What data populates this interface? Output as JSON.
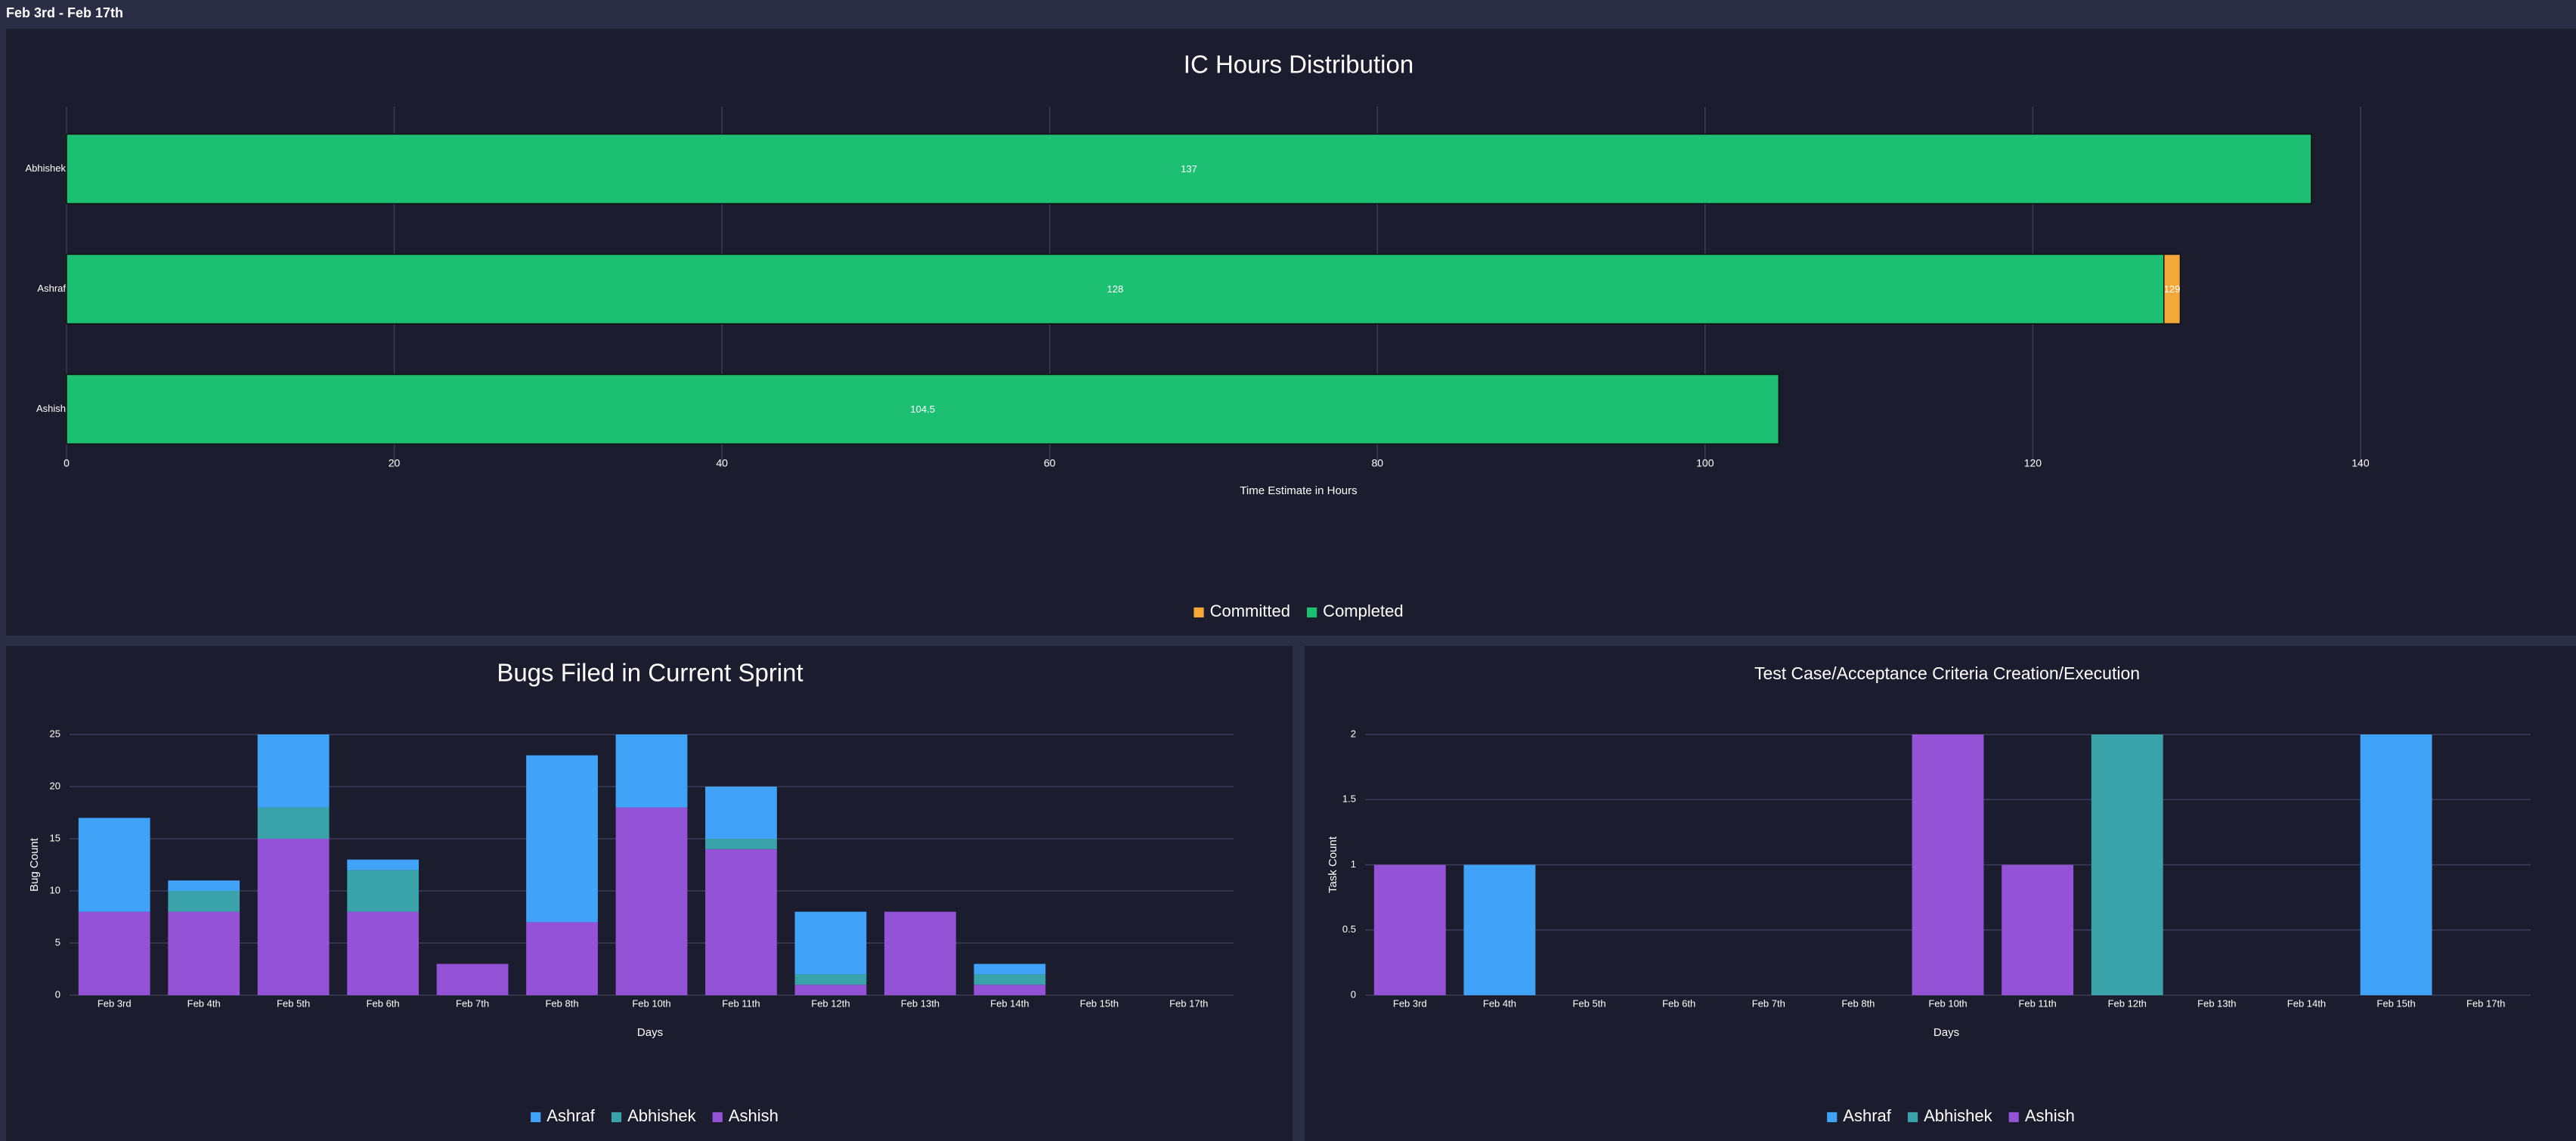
{
  "header": {
    "date_range": "Feb 3rd - Feb 17th"
  },
  "chart_data": [
    {
      "id": "ic",
      "type": "bar",
      "orientation": "horizontal",
      "stacked": true,
      "title": "IC Hours Distribution",
      "xlabel": "Time Estimate in Hours",
      "ylabel": "",
      "xlim": [
        0,
        146
      ],
      "xticks": [
        0,
        20,
        40,
        60,
        80,
        100,
        120,
        140
      ],
      "categories": [
        "Abhishek",
        "Ashraf",
        "Ashish"
      ],
      "series": [
        {
          "name": "Completed",
          "color": "#1dbf73",
          "values": [
            137,
            128,
            104.5
          ],
          "labels": [
            "137",
            "128",
            "104.5"
          ]
        },
        {
          "name": "Committed",
          "color": "#f5a83a",
          "values": [
            0,
            1,
            0
          ],
          "labels": [
            "",
            "129",
            ""
          ]
        }
      ],
      "legend": [
        {
          "name": "Committed",
          "color": "#f5a83a"
        },
        {
          "name": "Completed",
          "color": "#1dbf73"
        }
      ],
      "legend_position": "bottom-center"
    },
    {
      "id": "bugs",
      "type": "bar",
      "stacked": true,
      "title": "Bugs Filed in Current Sprint",
      "xlabel": "Days",
      "ylabel": "Bug Count",
      "ylim": [
        0,
        25
      ],
      "yticks": [
        "0",
        "5",
        "10",
        "15",
        "20",
        "25"
      ],
      "categories": [
        "Feb 3rd",
        "Feb 4th",
        "Feb 5th",
        "Feb 6th",
        "Feb 7th",
        "Feb 8th",
        "Feb 10th",
        "Feb 11th",
        "Feb 12th",
        "Feb 13th",
        "Feb 14th",
        "Feb 15th",
        "Feb 17th"
      ],
      "series": [
        {
          "name": "Ashish",
          "color": "#9452d6",
          "values": [
            8,
            8,
            15,
            8,
            3,
            7,
            18,
            14,
            1,
            8,
            1,
            0,
            0
          ]
        },
        {
          "name": "Abhishek",
          "color": "#3aa3a9",
          "values": [
            0,
            2,
            3,
            4,
            0,
            0,
            0,
            1,
            1,
            0,
            1,
            0,
            0
          ]
        },
        {
          "name": "Ashraf",
          "color": "#41a3f7",
          "values": [
            9,
            1,
            7,
            1,
            0,
            16,
            7,
            5,
            6,
            0,
            1,
            0,
            0
          ]
        }
      ],
      "legend": [
        {
          "name": "Ashraf",
          "color": "#41a3f7"
        },
        {
          "name": "Abhishek",
          "color": "#3aa3a9"
        },
        {
          "name": "Ashish",
          "color": "#9452d6"
        }
      ],
      "legend_position": "bottom-center"
    },
    {
      "id": "tests",
      "type": "bar",
      "stacked": true,
      "title": "Test Case/Acceptance Criteria Creation/Execution",
      "xlabel": "Days",
      "ylabel": "Task Count",
      "ylim": [
        0,
        2
      ],
      "yticks": [
        "0",
        "0.5",
        "1",
        "1.5",
        "2"
      ],
      "categories": [
        "Feb 3rd",
        "Feb 4th",
        "Feb 5th",
        "Feb 6th",
        "Feb 7th",
        "Feb 8th",
        "Feb 10th",
        "Feb 11th",
        "Feb 12th",
        "Feb 13th",
        "Feb 14th",
        "Feb 15th",
        "Feb 17th"
      ],
      "series": [
        {
          "name": "Ashish",
          "color": "#9452d6",
          "values": [
            1,
            0,
            0,
            0,
            0,
            0,
            2,
            1,
            0,
            0,
            0,
            0,
            0
          ]
        },
        {
          "name": "Abhishek",
          "color": "#3aa3a9",
          "values": [
            0,
            0,
            0,
            0,
            0,
            0,
            0,
            0,
            2,
            0,
            0,
            0,
            0
          ]
        },
        {
          "name": "Ashraf",
          "color": "#41a3f7",
          "values": [
            0,
            1,
            0,
            0,
            0,
            0,
            0,
            0,
            0,
            0,
            0,
            2,
            0
          ]
        }
      ],
      "legend": [
        {
          "name": "Ashraf",
          "color": "#41a3f7"
        },
        {
          "name": "Abhishek",
          "color": "#3aa3a9"
        },
        {
          "name": "Ashish",
          "color": "#9452d6"
        }
      ],
      "legend_position": "bottom-center"
    }
  ]
}
